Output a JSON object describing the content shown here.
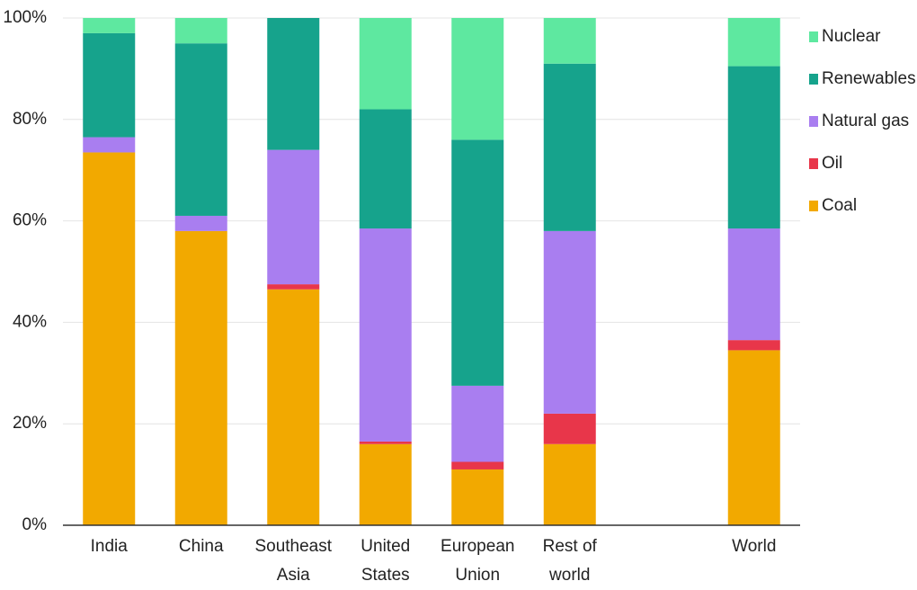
{
  "chart_data": {
    "type": "stacked_bar",
    "categories": [
      "India",
      "China",
      "Southeast Asia",
      "United States",
      "European Union",
      "Rest of world",
      null,
      "World"
    ],
    "series": [
      {
        "name": "Coal",
        "color": "#f2a900",
        "values": [
          73.5,
          58,
          46.5,
          16,
          11,
          16,
          null,
          34.5
        ]
      },
      {
        "name": "Oil",
        "color": "#e8364a",
        "values": [
          0,
          0,
          1,
          0.5,
          1.5,
          6,
          null,
          2
        ]
      },
      {
        "name": "Natural gas",
        "color": "#a97ef0",
        "values": [
          3,
          3,
          26.5,
          42,
          15,
          36,
          null,
          22
        ]
      },
      {
        "name": "Renewables",
        "color": "#16a38c",
        "values": [
          20.5,
          34,
          26,
          23.5,
          48.5,
          33,
          null,
          32
        ]
      },
      {
        "name": "Nuclear",
        "color": "#5ee8a0",
        "values": [
          3,
          5,
          0,
          18,
          24,
          9,
          null,
          9.5
        ]
      }
    ],
    "ylim": [
      0,
      100
    ],
    "yticks": [
      {
        "value": 0,
        "label": "0%"
      },
      {
        "value": 20,
        "label": "20%"
      },
      {
        "value": 40,
        "label": "40%"
      },
      {
        "value": 60,
        "label": "60%"
      },
      {
        "value": 80,
        "label": "80%"
      },
      {
        "value": 100,
        "label": "100%"
      }
    ],
    "grid": true,
    "legend": "right"
  }
}
